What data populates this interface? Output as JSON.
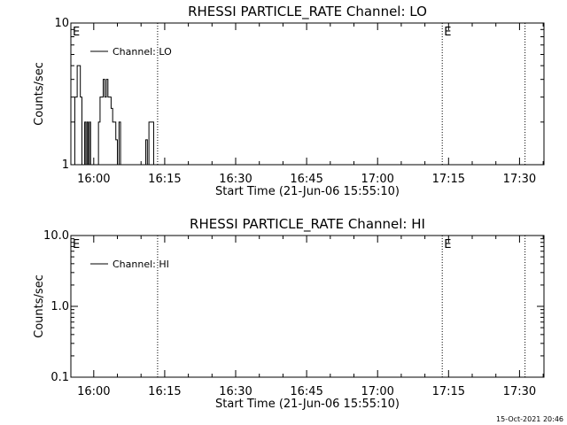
{
  "timestamp": "15-Oct-2021 20:46",
  "chart_data": [
    {
      "type": "line",
      "title": "RHESSI PARTICLE_RATE Channel: LO",
      "xlabel": "Start Time (21-Jun-06 15:55:10)",
      "ylabel": "Counts/sec",
      "yscale": "log",
      "ylim": [
        1,
        10
      ],
      "xlim": [
        "15:55:10",
        "17:35:10"
      ],
      "x_ticks": [
        "16:00",
        "16:15",
        "16:30",
        "16:45",
        "17:00",
        "17:15",
        "17:30"
      ],
      "y_ticks": [
        "1",
        "10"
      ],
      "legend": {
        "entry": "Channel: LO",
        "placement": "top-left"
      },
      "markers": [
        {
          "label": "E",
          "x": "15:55:10"
        },
        {
          "x": "16:13:30"
        },
        {
          "label": "E",
          "x": "17:13:40"
        },
        {
          "x": "17:31:10"
        }
      ],
      "series": [
        {
          "name": "Channel: LO",
          "x": [
            "15:55:30",
            "15:56:00",
            "15:56:30",
            "15:56:50",
            "15:57:10",
            "15:57:30",
            "15:57:50",
            "15:58:05",
            "15:58:20",
            "15:58:35",
            "15:58:50",
            "15:59:05",
            "15:59:20",
            "15:59:40",
            "16:00:00",
            "16:00:30",
            "16:01:00",
            "16:01:20",
            "16:01:40",
            "16:02:00",
            "16:02:20",
            "16:02:40",
            "16:03:00",
            "16:03:20",
            "16:03:40",
            "16:04:00",
            "16:04:20",
            "16:04:40",
            "16:05:00",
            "16:05:20",
            "16:05:40",
            "16:06:00",
            "16:06:20",
            "16:06:40",
            "16:07:00",
            "16:07:20",
            "16:07:40",
            "16:08:00",
            "16:08:30",
            "16:09:30",
            "16:10:30",
            "16:11:00",
            "16:11:20",
            "16:11:40",
            "16:12:00",
            "16:12:20",
            "16:12:40",
            "16:13:00"
          ],
          "y": [
            1,
            3,
            5,
            5,
            3,
            1,
            1,
            2,
            1,
            2,
            1,
            2,
            1,
            1,
            1,
            1,
            2,
            3,
            3,
            4,
            3,
            4,
            3,
            3,
            2.5,
            2,
            2,
            1.5,
            1,
            2,
            1,
            1,
            1,
            1,
            1,
            1,
            1,
            1,
            1,
            1,
            1,
            1.5,
            1,
            2,
            2,
            2,
            1,
            1
          ]
        }
      ]
    },
    {
      "type": "line",
      "title": "RHESSI PARTICLE_RATE Channel: HI",
      "xlabel": "Start Time (21-Jun-06 15:55:10)",
      "ylabel": "Counts/sec",
      "yscale": "log",
      "ylim": [
        0.1,
        10
      ],
      "xlim": [
        "15:55:10",
        "17:35:10"
      ],
      "x_ticks": [
        "16:00",
        "16:15",
        "16:30",
        "16:45",
        "17:00",
        "17:15",
        "17:30"
      ],
      "y_ticks": [
        "0.1",
        "1.0",
        "10.0"
      ],
      "legend": {
        "entry": "Channel: HI",
        "placement": "top-left"
      },
      "markers": [
        {
          "label": "E",
          "x": "15:55:10"
        },
        {
          "x": "16:13:30"
        },
        {
          "label": "E",
          "x": "17:13:40"
        },
        {
          "x": "17:31:10"
        }
      ],
      "series": [
        {
          "name": "Channel: HI",
          "x": [],
          "y": []
        }
      ]
    }
  ]
}
